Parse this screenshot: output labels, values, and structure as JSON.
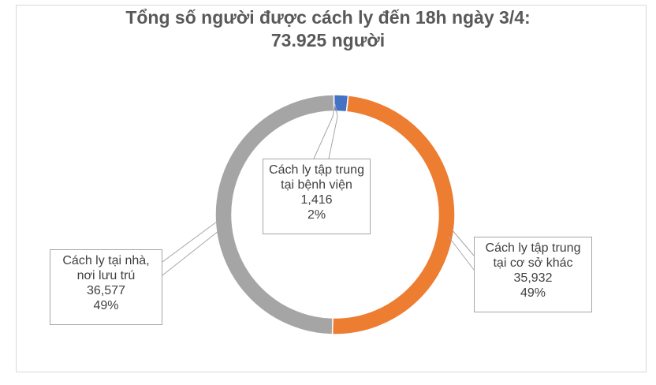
{
  "chart_data": {
    "type": "pie",
    "variant": "doughnut",
    "title": "Tổng số người được cách ly đến 18h ngày 3/4:",
    "subtitle": "73.925 người",
    "slices": [
      {
        "label_line1": "Cách ly tập trung",
        "label_line2": "tại bệnh viện",
        "value": 1416,
        "value_text": "1,416",
        "percent_text": "2%",
        "color": "#4472c4"
      },
      {
        "label_line1": "Cách ly tập trung",
        "label_line2": "tại cơ sở khác",
        "value": 35932,
        "value_text": "35,932",
        "percent_text": "49%",
        "color": "#ed7d31"
      },
      {
        "label_line1": "Cách ly tại nhà,",
        "label_line2": "nơi lưu trú",
        "value": 36577,
        "value_text": "36,577",
        "percent_text": "49%",
        "color": "#a5a5a5"
      }
    ],
    "legend": "none"
  }
}
